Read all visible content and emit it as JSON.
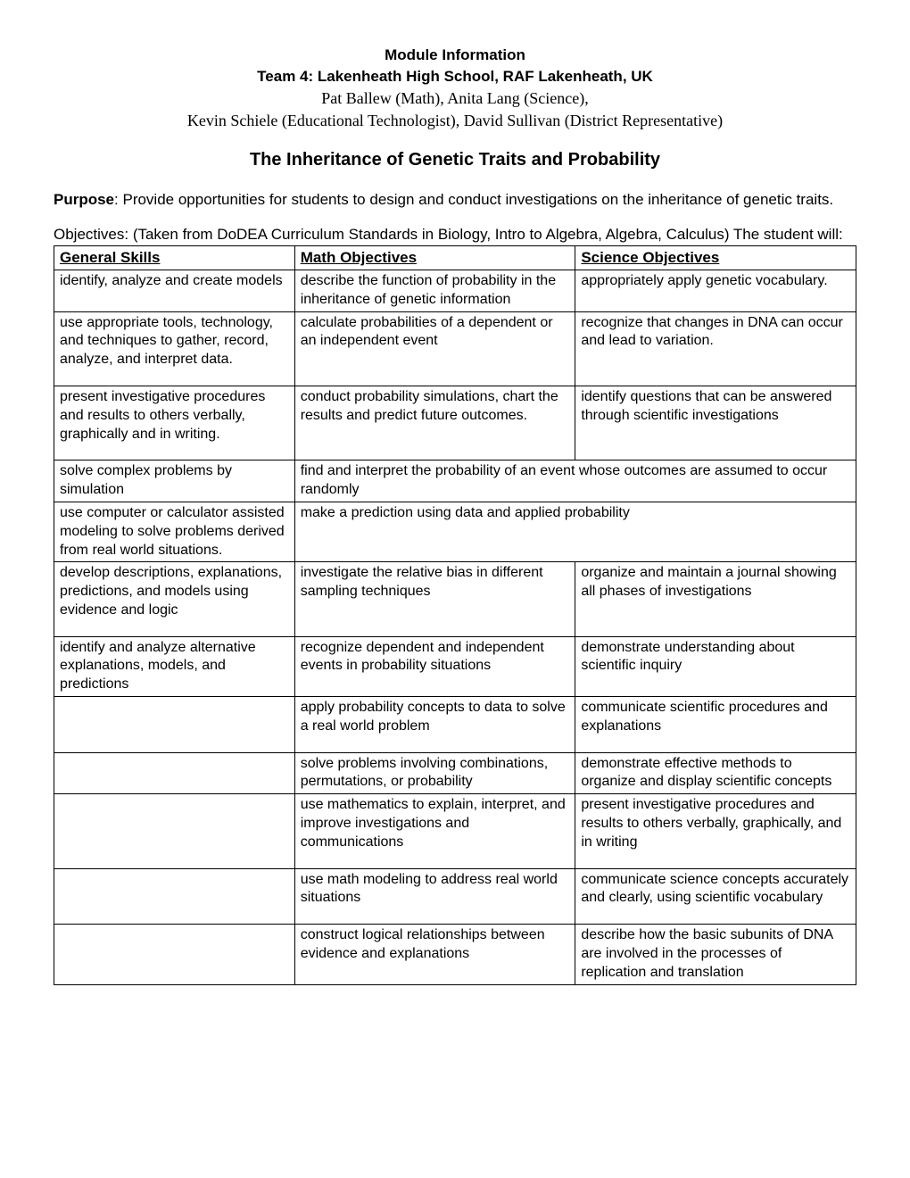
{
  "header": {
    "line1": "Module Information",
    "line2": "Team 4:  Lakenheath High School, RAF Lakenheath, UK",
    "line3": "Pat Ballew (Math), Anita Lang (Science),",
    "line4": "Kevin Schiele (Educational Technologist), David Sullivan (District Representative)"
  },
  "title": "The Inheritance of Genetic Traits and Probability",
  "purpose": {
    "label": "Purpose",
    "text": ":  Provide opportunities for students to design and conduct investigations on the inheritance of genetic traits."
  },
  "objectives": {
    "label": "Objectives",
    "text": ":  (Taken from DoDEA Curriculum Standards in Biology, Intro to Algebra, Algebra, Calculus)  The student will:"
  },
  "table": {
    "headers": {
      "general": "General Skills",
      "math": "Math Objectives",
      "science": "Science Objectives"
    },
    "rows": [
      {
        "general": "identify, analyze and create models",
        "math": "describe the function of probability in the inheritance of genetic information",
        "science": "appropriately apply genetic vocabulary."
      },
      {
        "general": "use appropriate tools, technology, and techniques to gather, record, analyze, and interpret data.",
        "math": "calculate probabilities of a dependent or an independent event",
        "science": "recognize that changes in DNA can occur and lead to variation.",
        "tall": true
      },
      {
        "general": "present investigative procedures and results to others verbally, graphically and in writing.",
        "math": "conduct probability simulations, chart the results and predict future outcomes.",
        "science": "identify questions that can be answered through scientific investigations",
        "tall": true
      },
      {
        "general": "solve complex problems by simulation",
        "merged": "find and interpret the probability of an event whose outcomes are assumed to occur randomly"
      },
      {
        "general": "use computer or calculator assisted modeling to solve problems derived from real world situations.",
        "merged": "make a prediction using data and applied probability"
      },
      {
        "general": "develop descriptions, explanations, predictions, and models using evidence and logic",
        "math": "investigate the relative bias in different sampling techniques",
        "science": "organize and maintain a journal showing all phases of investigations",
        "tall": true
      },
      {
        "general": "identify and analyze alternative explanations, models, and predictions",
        "math": "recognize dependent and independent events in probability situations",
        "science": "demonstrate understanding about scientific inquiry"
      },
      {
        "general": "",
        "math": "apply probability concepts to data to solve a real world problem",
        "science": "communicate scientific procedures and explanations",
        "tall": true
      },
      {
        "general": "",
        "math": "solve problems involving combinations, permutations, or probability",
        "science": "demonstrate effective methods to organize and display scientific concepts"
      },
      {
        "general": "",
        "math": "use mathematics to explain, interpret, and improve investigations and communications",
        "science": "present investigative procedures and results to others verbally, graphically, and in writing",
        "tall": true
      },
      {
        "general": "",
        "math": "use math modeling to address real world situations",
        "science": "communicate science concepts accurately and clearly, using scientific vocabulary",
        "tall": true
      },
      {
        "general": "",
        "math": "construct logical relationships between evidence and explanations",
        "science": "describe how the basic subunits of DNA are involved in the processes of replication and translation"
      }
    ]
  }
}
